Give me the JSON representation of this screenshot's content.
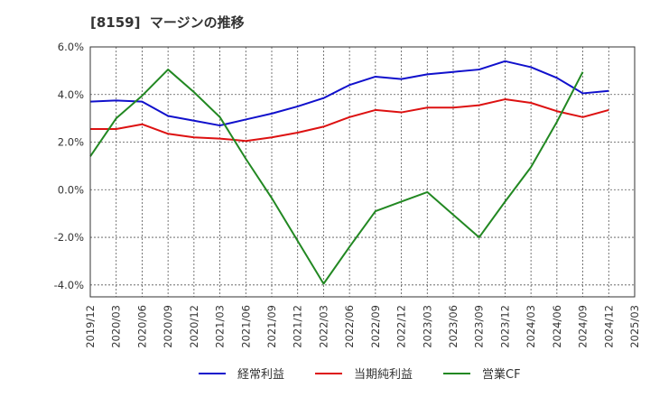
{
  "chart_data": {
    "type": "line",
    "title": "[8159]  マージンの推移",
    "x": [
      "2019/12",
      "2020/03",
      "2020/06",
      "2020/09",
      "2020/12",
      "2021/03",
      "2021/06",
      "2021/09",
      "2021/12",
      "2022/03",
      "2022/06",
      "2022/09",
      "2022/12",
      "2023/03",
      "2023/06",
      "2023/09",
      "2023/12",
      "2024/03",
      "2024/06",
      "2024/09",
      "2024/12",
      "2025/03"
    ],
    "ylim": [
      -4.5,
      6.0
    ],
    "yticks": [
      -4.0,
      -2.0,
      0.0,
      2.0,
      4.0,
      6.0
    ],
    "ytick_labels": [
      "-4.0%",
      "-2.0%",
      "0.0%",
      "2.0%",
      "4.0%",
      "6.0%"
    ],
    "grid": true,
    "legend_position": "bottom",
    "series": [
      {
        "name": "経常利益",
        "color": "#1010cc",
        "values": [
          3.7,
          3.75,
          3.7,
          3.1,
          2.9,
          2.7,
          2.95,
          3.2,
          3.5,
          3.85,
          4.4,
          4.75,
          4.65,
          4.85,
          4.95,
          5.05,
          5.4,
          5.15,
          4.7,
          4.05,
          4.15,
          null
        ]
      },
      {
        "name": "当期純利益",
        "color": "#dd1111",
        "values": [
          2.55,
          2.55,
          2.75,
          2.35,
          2.2,
          2.15,
          2.05,
          2.2,
          2.4,
          2.65,
          3.05,
          3.35,
          3.25,
          3.45,
          3.45,
          3.55,
          3.8,
          3.65,
          3.3,
          3.05,
          3.35,
          null
        ]
      },
      {
        "name": "営業CF",
        "color": "#228822",
        "values": [
          1.4,
          3.0,
          3.95,
          5.05,
          4.1,
          3.05,
          1.3,
          -0.35,
          -2.15,
          -3.95,
          -2.4,
          -0.9,
          -0.5,
          -0.1,
          -1.05,
          -2.0,
          -0.5,
          0.95,
          2.85,
          4.95,
          null,
          null
        ]
      }
    ]
  }
}
